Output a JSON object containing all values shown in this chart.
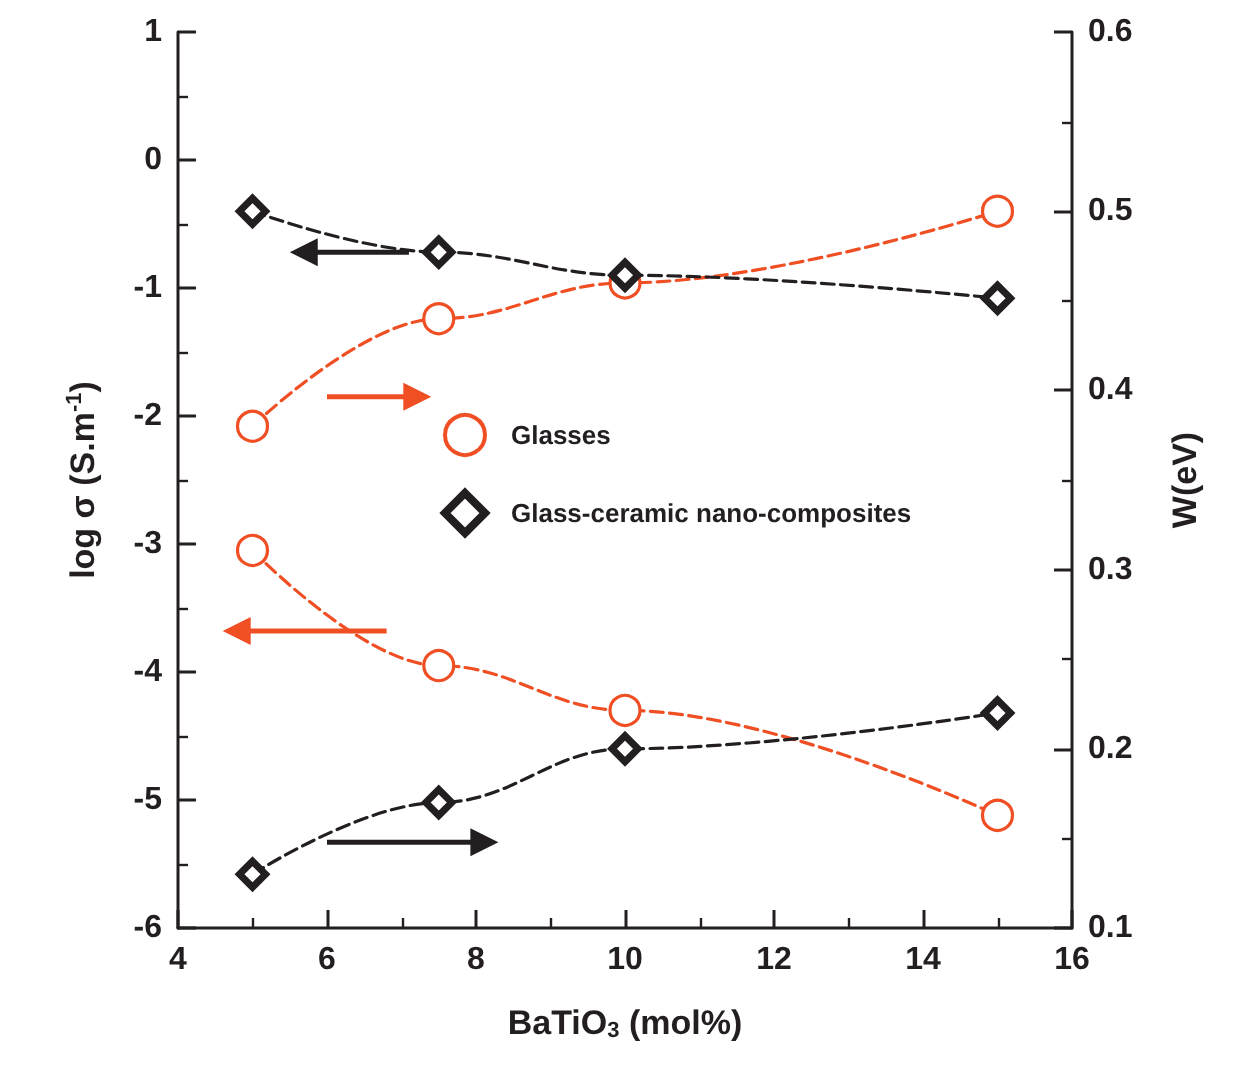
{
  "chart_data": {
    "type": "line",
    "xlabel": "BaTiO$_{3}$ (mol%)",
    "ylabel": "log σ (S.m$^{-1}$)",
    "y2label": "W(eV)",
    "x": [
      5,
      7.5,
      10,
      15
    ],
    "series": [
      {
        "name": "Glasses",
        "color": "#f04e23",
        "marker": "circle",
        "values": [
          -3.05,
          -3.95,
          -4.3,
          -5.12
        ]
      },
      {
        "name": "Glass-ceramic nano-composites",
        "color": "#231f20",
        "marker": "diamond",
        "values": [
          -0.4,
          -0.72,
          -0.9,
          -1.08
        ]
      },
      {
        "color": "#f04e23",
        "marker": "circle",
        "axis": "y2",
        "values": [
          0.38,
          0.44,
          0.46,
          0.5
        ]
      },
      {
        "color": "#231f20",
        "marker": "diamond",
        "axis": "y2",
        "values": [
          0.13,
          0.17,
          0.2,
          0.22
        ]
      }
    ],
    "xlim": [
      4,
      16
    ],
    "xticks": [
      4,
      6,
      8,
      10,
      12,
      14,
      16
    ],
    "ylim": [
      -6,
      1
    ],
    "yticks": [
      -6,
      -5,
      -4,
      -3,
      -2,
      -1,
      0,
      1
    ],
    "y2lim": [
      0.1,
      0.6
    ],
    "y2ticks": [
      0.1,
      0.2,
      0.3,
      0.4,
      0.5,
      0.6
    ],
    "line_style": "dashed",
    "grid": false,
    "legend": "right"
  }
}
